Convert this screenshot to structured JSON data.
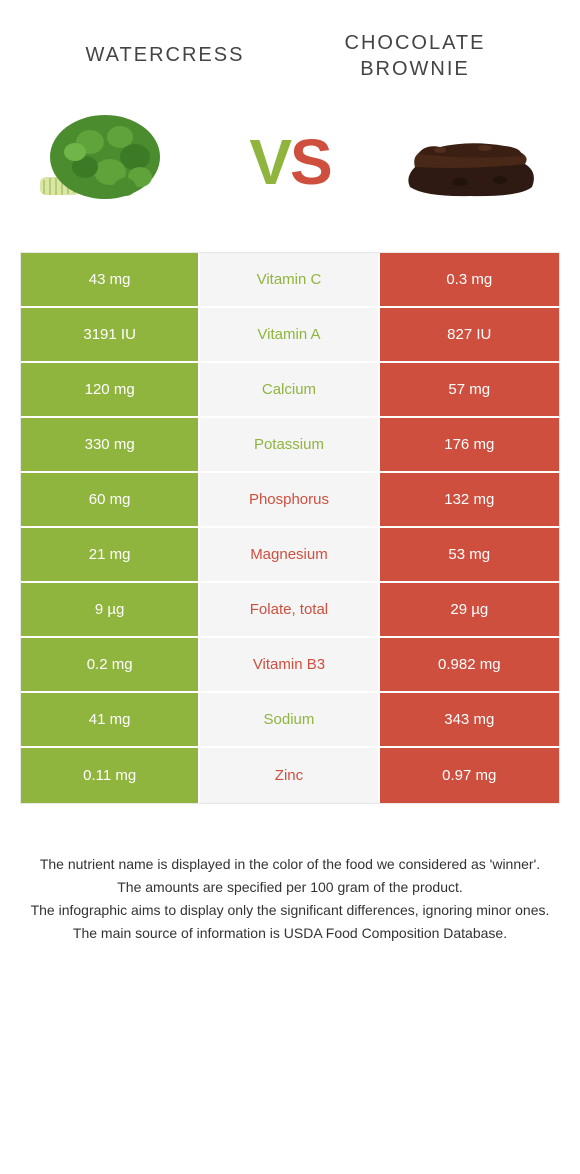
{
  "header": {
    "left_title": "WATERCRESS",
    "right_title_line1": "CHOCOLATE",
    "right_title_line2": "BROWNIE"
  },
  "vs": {
    "v": "V",
    "s": "S"
  },
  "colors": {
    "left": "#8fb53e",
    "right": "#cf4f3f",
    "mid_bg": "#f5f5f5"
  },
  "rows": [
    {
      "left": "43 mg",
      "label": "Vitamin C",
      "right": "0.3 mg",
      "winner": "left"
    },
    {
      "left": "3191 IU",
      "label": "Vitamin A",
      "right": "827 IU",
      "winner": "left"
    },
    {
      "left": "120 mg",
      "label": "Calcium",
      "right": "57 mg",
      "winner": "left"
    },
    {
      "left": "330 mg",
      "label": "Potassium",
      "right": "176 mg",
      "winner": "left"
    },
    {
      "left": "60 mg",
      "label": "Phosphorus",
      "right": "132 mg",
      "winner": "right"
    },
    {
      "left": "21 mg",
      "label": "Magnesium",
      "right": "53 mg",
      "winner": "right"
    },
    {
      "left": "9 µg",
      "label": "Folate, total",
      "right": "29 µg",
      "winner": "right"
    },
    {
      "left": "0.2 mg",
      "label": "Vitamin B3",
      "right": "0.982 mg",
      "winner": "right"
    },
    {
      "left": "41 mg",
      "label": "Sodium",
      "right": "343 mg",
      "winner": "left"
    },
    {
      "left": "0.11 mg",
      "label": "Zinc",
      "right": "0.97 mg",
      "winner": "right"
    }
  ],
  "footer": {
    "line1": "The nutrient name is displayed in the color of the food we considered as 'winner'.",
    "line2": "The amounts are specified per 100 gram of the product.",
    "line3": "The infographic aims to display only the significant differences, ignoring minor ones.",
    "line4": "The main source of information is USDA Food Composition Database."
  }
}
